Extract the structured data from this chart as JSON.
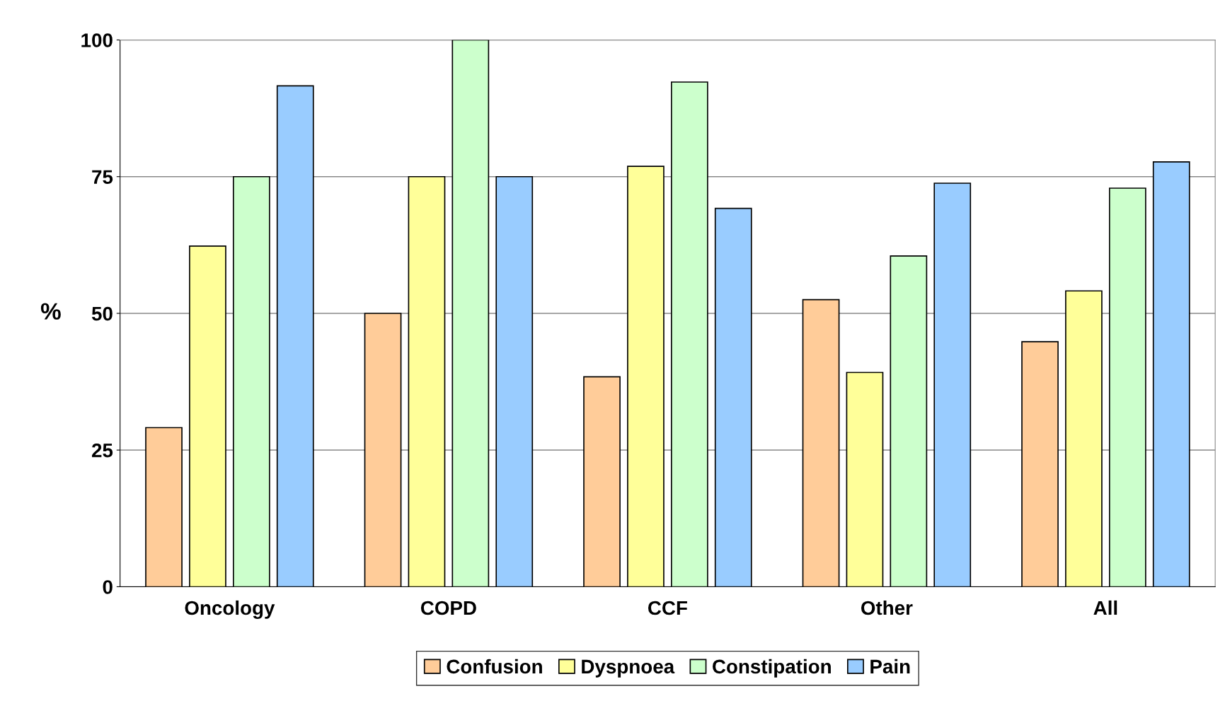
{
  "chart_data": {
    "type": "bar",
    "ylabel": "%",
    "categories": [
      "Oncology",
      "COPD",
      "CCF",
      "Other",
      "All"
    ],
    "series": [
      {
        "name": "Confusion",
        "color": "#ffcc99",
        "values": [
          29.1,
          50,
          38.4,
          52.5,
          44.8
        ]
      },
      {
        "name": "Dyspnoea",
        "color": "#ffff99",
        "values": [
          62.3,
          75,
          76.9,
          39.2,
          54.1
        ]
      },
      {
        "name": "Constipation",
        "color": "#ccffcc",
        "values": [
          75,
          100,
          92.3,
          60.5,
          72.9
        ]
      },
      {
        "name": "Pain",
        "color": "#99ccff",
        "values": [
          91.6,
          75,
          69.2,
          73.8,
          77.7
        ]
      }
    ],
    "ylim": [
      0,
      100
    ],
    "yticks": [
      0,
      25,
      50,
      75,
      100
    ],
    "grid": "y",
    "legend": "bottom"
  }
}
